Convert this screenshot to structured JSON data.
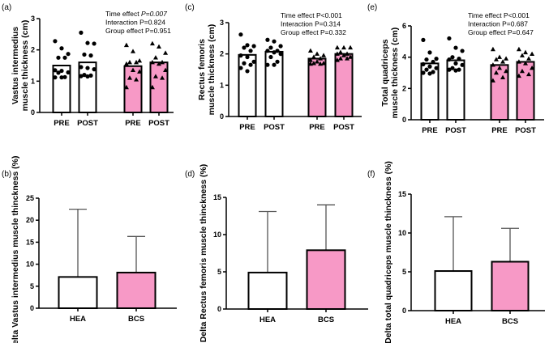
{
  "colors": {
    "hea_fill": "#ffffff",
    "bcs_fill": "#f799c6",
    "stroke": "#000000",
    "errbar": "#555555"
  },
  "chart_data": [
    {
      "panel": "(a)",
      "type": "bar+scatter",
      "ylabel": [
        "Vastus intermedius",
        "muscle thickness (cm)"
      ],
      "ylim": [
        0,
        3
      ],
      "yticks": [
        "0",
        "1",
        "2",
        "3"
      ],
      "categories": [
        "PRE",
        "POST",
        "PRE",
        "POST"
      ],
      "annotations": [
        {
          "prefix": "Time effect ",
          "p": "P=0.007",
          "italic_value": true
        },
        {
          "prefix": "Interaction ",
          "p": "P=0.824",
          "italic_value": false
        },
        {
          "prefix": "Group effect ",
          "p": "P=0.951",
          "italic_value": false
        }
      ],
      "series": [
        {
          "group": "HEA",
          "time": "PRE",
          "mean": 1.5,
          "marker": "circle",
          "points": [
            2.28,
            2.05,
            1.87,
            1.75,
            1.75,
            1.35,
            1.33,
            1.28,
            1.27,
            1.13,
            1.12,
            1.12
          ]
        },
        {
          "group": "HEA",
          "time": "POST",
          "mean": 1.6,
          "marker": "circle",
          "points": [
            2.55,
            2.22,
            2.2,
            1.85,
            1.82,
            1.45,
            1.42,
            1.38,
            1.2,
            1.18,
            1.16,
            1.15
          ]
        },
        {
          "group": "BCS",
          "time": "PRE",
          "mean": 1.48,
          "marker": "triangle",
          "points": [
            2.15,
            1.95,
            1.65,
            1.6,
            1.6,
            1.55,
            1.35,
            1.3,
            1.1,
            1.05,
            0.8
          ]
        },
        {
          "group": "BCS",
          "time": "POST",
          "mean": 1.6,
          "marker": "triangle",
          "points": [
            2.2,
            2.1,
            1.9,
            1.75,
            1.6,
            1.6,
            1.55,
            1.35,
            1.15,
            1.1,
            0.8
          ]
        }
      ]
    },
    {
      "panel": "(c)",
      "type": "bar+scatter",
      "ylabel": [
        "Rectus femoris",
        "muscle thickness (cm)"
      ],
      "ylim": [
        0,
        3
      ],
      "yticks": [
        "0",
        "1",
        "2",
        "3"
      ],
      "categories": [
        "PRE",
        "POST",
        "PRE",
        "POST"
      ],
      "annotations": [
        {
          "prefix": "Time effect ",
          "p": "P<0.001",
          "italic_value": false
        },
        {
          "prefix": "Interaction ",
          "p": "P=0.314",
          "italic_value": false
        },
        {
          "prefix": "Group effect ",
          "p": "P=0.332",
          "italic_value": false
        }
      ],
      "series": [
        {
          "group": "HEA",
          "time": "PRE",
          "mean": 1.97,
          "marker": "circle",
          "points": [
            2.62,
            2.28,
            2.25,
            2.2,
            2.1,
            1.95,
            1.9,
            1.75,
            1.7,
            1.65,
            1.55,
            1.45
          ]
        },
        {
          "group": "HEA",
          "time": "POST",
          "mean": 2.07,
          "marker": "circle",
          "points": [
            2.45,
            2.4,
            2.25,
            2.2,
            2.1,
            2.1,
            2.05,
            2.0,
            1.9,
            1.75,
            1.65,
            1.65
          ]
        },
        {
          "group": "BCS",
          "time": "PRE",
          "mean": 1.85,
          "marker": "triangle",
          "points": [
            2.1,
            2.0,
            1.95,
            1.9,
            1.85,
            1.8,
            1.75,
            1.7,
            1.7,
            1.68,
            1.68
          ]
        },
        {
          "group": "BCS",
          "time": "POST",
          "mean": 2.0,
          "marker": "triangle",
          "points": [
            2.2,
            2.2,
            2.2,
            2.05,
            2.0,
            2.0,
            1.95,
            1.9,
            1.85,
            1.85,
            1.8
          ]
        }
      ]
    },
    {
      "panel": "(e)",
      "type": "bar+scatter",
      "ylabel": [
        "Total quadriceps",
        "muscle thickness (cm)"
      ],
      "ylim": [
        0,
        6
      ],
      "yticks": [
        "0",
        "2",
        "4",
        "6"
      ],
      "categories": [
        "PRE",
        "POST",
        "PRE",
        "POST"
      ],
      "annotations": [
        {
          "prefix": "Time effect ",
          "p": "P<0.001",
          "italic_value": false
        },
        {
          "prefix": "Interaction ",
          "p": "P=0.687",
          "italic_value": false
        },
        {
          "prefix": "Group effect ",
          "p": "P=0.647",
          "italic_value": false
        }
      ],
      "series": [
        {
          "group": "HEA",
          "time": "PRE",
          "mean": 3.6,
          "marker": "circle",
          "points": [
            5.1,
            4.3,
            3.9,
            3.85,
            3.7,
            3.55,
            3.4,
            3.3,
            3.2,
            3.05,
            3.0,
            2.95
          ]
        },
        {
          "group": "HEA",
          "time": "POST",
          "mean": 3.8,
          "marker": "circle",
          "points": [
            5.2,
            4.6,
            4.4,
            4.0,
            3.9,
            3.85,
            3.6,
            3.5,
            3.3,
            3.2,
            3.2,
            3.15
          ]
        },
        {
          "group": "BCS",
          "time": "PRE",
          "mean": 3.5,
          "marker": "triangle",
          "points": [
            4.5,
            4.0,
            3.9,
            3.85,
            3.7,
            3.5,
            3.3,
            3.1,
            3.0,
            2.7,
            2.5
          ]
        },
        {
          "group": "BCS",
          "time": "POST",
          "mean": 3.7,
          "marker": "triangle",
          "points": [
            4.5,
            4.3,
            4.2,
            4.1,
            3.9,
            3.7,
            3.6,
            3.3,
            3.1,
            2.9,
            2.8
          ]
        }
      ]
    },
    {
      "panel": "(b)",
      "type": "bar",
      "ylabel": [
        "Delta Vastus intermedius muscle thinckness (%)"
      ],
      "ylim": [
        0,
        25
      ],
      "yticks": [
        "0",
        "5",
        "10",
        "15",
        "20",
        "25"
      ],
      "categories": [
        "HEA",
        "BCS"
      ],
      "values": [
        7.1,
        8.1
      ],
      "error_upper": [
        22.5,
        16.3
      ]
    },
    {
      "panel": "(d)",
      "type": "bar",
      "ylabel": [
        "Delta Rectus femoris muscle thinckness (%)"
      ],
      "ylim": [
        0,
        15
      ],
      "yticks": [
        "0",
        "5",
        "10",
        "15"
      ],
      "categories": [
        "HEA",
        "BCS"
      ],
      "values": [
        4.9,
        7.9
      ],
      "error_upper": [
        13.1,
        14.0
      ]
    },
    {
      "panel": "(f)",
      "type": "bar",
      "ylabel": [
        "Delta total quadriceps muscle thinckness (%)"
      ],
      "ylim": [
        0,
        15
      ],
      "yticks": [
        "0",
        "5",
        "10",
        "15"
      ],
      "categories": [
        "HEA",
        "BCS"
      ],
      "values": [
        5.1,
        6.3
      ],
      "error_upper": [
        12.1,
        10.6
      ]
    }
  ]
}
